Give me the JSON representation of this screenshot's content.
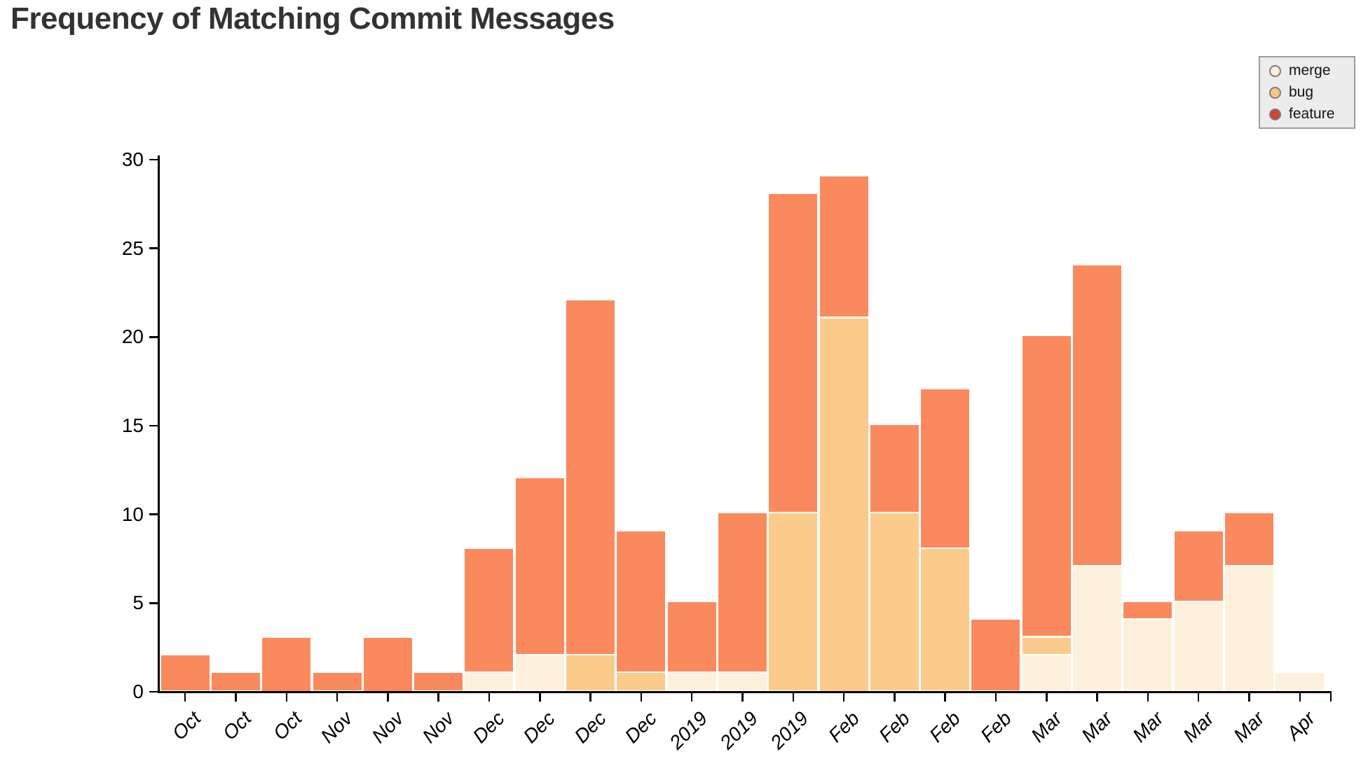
{
  "title": "Frequency of Matching Commit Messages",
  "legend": {
    "position": "top-right",
    "items": [
      {
        "label": "merge",
        "dot_color": "#fcefd9"
      },
      {
        "label": "bug",
        "dot_color": "#f7c688"
      },
      {
        "label": "feature",
        "dot_color": "#d6432f"
      }
    ],
    "box_fill": "#ececec",
    "box_border": "#9c9c9c"
  },
  "chart_data": {
    "type": "bar",
    "stacked": true,
    "title": "Frequency of Matching Commit Messages",
    "xlabel": "",
    "ylabel": "",
    "grid": false,
    "legend_position": "top-right",
    "ylim": [
      0,
      30
    ],
    "yticks": [
      0,
      5,
      10,
      15,
      20,
      25,
      30
    ],
    "categories": [
      "Oct",
      "Oct",
      "Oct",
      "Nov",
      "Nov",
      "Nov",
      "Dec",
      "Dec",
      "Dec",
      "Dec",
      "2019",
      "2019",
      "2019",
      "Feb",
      "Feb",
      "Feb",
      "Feb",
      "Mar",
      "Mar",
      "Mar",
      "Mar",
      "Mar",
      "Apr"
    ],
    "series": [
      {
        "name": "merge",
        "color": "#fdf1de",
        "values": [
          0,
          0,
          0,
          0,
          0,
          0,
          1,
          2,
          0,
          0,
          1,
          1,
          0,
          0,
          0,
          0,
          0,
          2,
          7,
          4,
          5,
          7,
          1
        ]
      },
      {
        "name": "bug",
        "color": "#fbcb8c",
        "values": [
          0,
          0,
          0,
          0,
          0,
          0,
          0,
          0,
          2,
          1,
          0,
          0,
          10,
          21,
          10,
          8,
          0,
          1,
          0,
          0,
          0,
          0,
          0
        ]
      },
      {
        "name": "feature",
        "color": "#fa8a5e",
        "values": [
          2,
          1,
          3,
          1,
          3,
          1,
          7,
          10,
          20,
          8,
          4,
          9,
          18,
          8,
          5,
          9,
          4,
          17,
          17,
          1,
          4,
          3,
          0
        ]
      }
    ],
    "bar_totals": [
      2,
      1,
      3,
      1,
      3,
      1,
      8,
      12,
      22,
      9,
      5,
      10,
      28,
      29,
      15,
      17,
      4,
      20,
      24,
      5,
      9,
      10,
      1
    ]
  }
}
